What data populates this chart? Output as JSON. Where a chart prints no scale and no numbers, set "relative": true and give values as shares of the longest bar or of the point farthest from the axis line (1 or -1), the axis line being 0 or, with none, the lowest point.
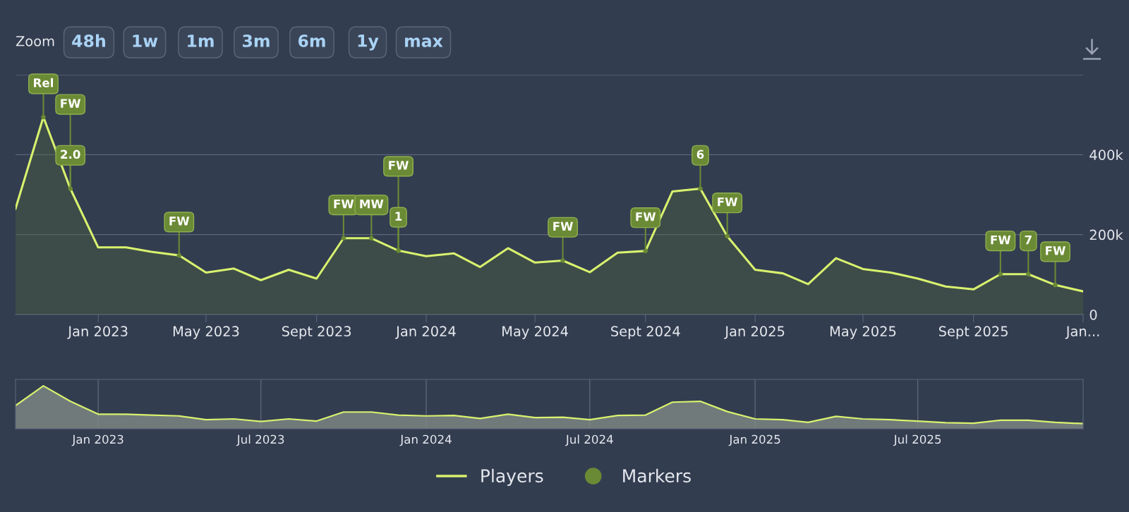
{
  "chart_data": [
    {
      "type": "line",
      "annotations": [
        "Zoom",
        "48h",
        "1w",
        "1m",
        "3m",
        "6m",
        "1y",
        "max",
        {
          "text": "Rel",
          "x": "2022-11-01",
          "y": 494000
        },
        {
          "text": "2.0",
          "x": "2022-12-01",
          "y": 315000
        },
        {
          "text": "FW",
          "x": "2022-12-01",
          "y": 315000
        },
        {
          "text": "FW",
          "x": "2023-04-01",
          "y": 148000
        },
        {
          "text": "FW",
          "x": "2023-10-01",
          "y": 191000
        },
        {
          "text": "MW",
          "x": "2023-11-01",
          "y": 191000
        },
        {
          "text": "1",
          "x": "2023-12-01",
          "y": 160000
        },
        {
          "text": "FW",
          "x": "2023-12-01",
          "y": 160000
        },
        {
          "text": "FW",
          "x": "2024-06-01",
          "y": 135000
        },
        {
          "text": "FW",
          "x": "2024-09-01",
          "y": 159000
        },
        {
          "text": "6",
          "x": "2024-11-01",
          "y": 315000
        },
        {
          "text": "FW",
          "x": "2024-12-01",
          "y": 196000
        },
        {
          "text": "FW",
          "x": "2025-10-01",
          "y": 101000
        },
        {
          "text": "7",
          "x": "2025-11-01",
          "y": 101000
        },
        {
          "text": "FW",
          "x": "2025-12-01",
          "y": 74000
        }
      ],
      "series": [
        {
          "name": "Players",
          "type": "area",
          "color": "#d8f26e",
          "x": [
            "2022-10-01",
            "2022-11-01",
            "2022-12-01",
            "2023-01-01",
            "2023-02-01",
            "2023-03-01",
            "2023-04-01",
            "2023-05-01",
            "2023-06-01",
            "2023-07-01",
            "2023-08-01",
            "2023-09-01",
            "2023-10-01",
            "2023-11-01",
            "2023-12-01",
            "2024-01-01",
            "2024-02-01",
            "2024-03-01",
            "2024-04-01",
            "2024-05-01",
            "2024-06-01",
            "2024-07-01",
            "2024-08-01",
            "2024-09-01",
            "2024-10-01",
            "2024-11-01",
            "2024-12-01",
            "2025-01-01",
            "2025-02-01",
            "2025-03-01",
            "2025-04-01",
            "2025-05-01",
            "2025-06-01",
            "2025-07-01",
            "2025-08-01",
            "2025-09-01",
            "2025-10-01",
            "2025-11-01",
            "2025-12-01",
            "2026-01-01"
          ],
          "values": [
            265000,
            494000,
            315000,
            168000,
            168000,
            157000,
            148000,
            105000,
            115000,
            86000,
            112000,
            90000,
            191000,
            191000,
            160000,
            146000,
            153000,
            119000,
            166000,
            130000,
            135000,
            106000,
            155000,
            159000,
            308000,
            315000,
            196000,
            112000,
            103000,
            76000,
            141000,
            114000,
            105000,
            90000,
            70000,
            63000,
            101000,
            101000,
            74000,
            58000
          ]
        },
        {
          "name": "Markers",
          "type": "scatter",
          "color": "#6b8a35",
          "x": [
            "2022-11-01",
            "2022-12-01",
            "2023-04-01",
            "2023-10-01",
            "2023-11-01",
            "2023-12-01",
            "2024-06-01",
            "2024-09-01",
            "2024-11-01",
            "2024-12-01",
            "2025-10-01",
            "2025-11-01",
            "2025-12-01"
          ],
          "values": [
            494000,
            315000,
            148000,
            191000,
            191000,
            160000,
            135000,
            159000,
            315000,
            196000,
            101000,
            101000,
            74000
          ]
        }
      ],
      "xlim": [
        "2022-10-01",
        "2026-01-01"
      ],
      "xticks": [
        {
          "value": "2023-01-01",
          "label": "Jan 2023"
        },
        {
          "value": "2023-05-01",
          "label": "May 2023"
        },
        {
          "value": "2023-09-01",
          "label": "Sept 2023"
        },
        {
          "value": "2024-01-01",
          "label": "Jan 2024"
        },
        {
          "value": "2024-05-01",
          "label": "May 2024"
        },
        {
          "value": "2024-09-01",
          "label": "Sept 2024"
        },
        {
          "value": "2025-01-01",
          "label": "Jan 2025"
        },
        {
          "value": "2025-05-01",
          "label": "May 2025"
        },
        {
          "value": "2025-09-01",
          "label": "Sept 2025"
        },
        {
          "value": "2026-01-01",
          "label": "Jan..."
        }
      ],
      "ylim": [
        0,
        600000
      ],
      "yticks": [
        {
          "value": 0,
          "label": "0"
        },
        {
          "value": 200000,
          "label": "200k"
        },
        {
          "value": 400000,
          "label": "400k"
        },
        {
          "value": 600000,
          "label": null
        }
      ],
      "grid": "y",
      "legend": "bottom"
    },
    {
      "type": "area",
      "relative": true,
      "color": "#d8f26e",
      "x": [
        "2022-10-01",
        "2022-11-01",
        "2022-12-01",
        "2023-01-01",
        "2023-02-01",
        "2023-03-01",
        "2023-04-01",
        "2023-05-01",
        "2023-06-01",
        "2023-07-01",
        "2023-08-01",
        "2023-09-01",
        "2023-10-01",
        "2023-11-01",
        "2023-12-01",
        "2024-01-01",
        "2024-02-01",
        "2024-03-01",
        "2024-04-01",
        "2024-05-01",
        "2024-06-01",
        "2024-07-01",
        "2024-08-01",
        "2024-09-01",
        "2024-10-01",
        "2024-11-01",
        "2024-12-01",
        "2025-01-01",
        "2025-02-01",
        "2025-03-01",
        "2025-04-01",
        "2025-05-01",
        "2025-06-01",
        "2025-07-01",
        "2025-08-01",
        "2025-09-01",
        "2025-10-01",
        "2025-11-01",
        "2025-12-01",
        "2026-01-01"
      ],
      "values": [
        0.54,
        1,
        0.64,
        0.34,
        0.34,
        0.32,
        0.3,
        0.21,
        0.23,
        0.17,
        0.23,
        0.18,
        0.39,
        0.39,
        0.32,
        0.3,
        0.31,
        0.24,
        0.34,
        0.26,
        0.27,
        0.21,
        0.31,
        0.32,
        0.62,
        0.64,
        0.4,
        0.23,
        0.21,
        0.15,
        0.29,
        0.23,
        0.21,
        0.18,
        0.14,
        0.13,
        0.2,
        0.2,
        0.15,
        0.12
      ],
      "xlim": [
        "2022-10-01",
        "2026-01-01"
      ],
      "xticks": [
        {
          "value": "2023-01-01",
          "label": "Jan 2023"
        },
        {
          "value": "2023-07-01",
          "label": "Jul 2023"
        },
        {
          "value": "2024-01-01",
          "label": "Jan 2024"
        },
        {
          "value": "2024-07-01",
          "label": "Jul 2024"
        },
        {
          "value": "2025-01-01",
          "label": "Jan 2025"
        },
        {
          "value": "2025-07-01",
          "label": "Jul 2025"
        }
      ],
      "grid": "x",
      "tick_labels": "x"
    }
  ]
}
